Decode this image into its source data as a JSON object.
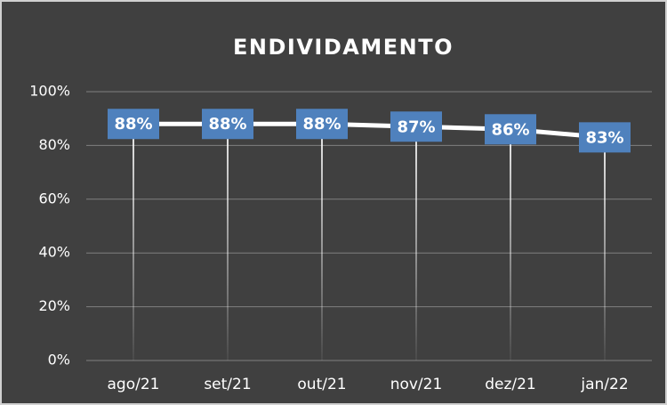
{
  "chart_data": {
    "type": "line",
    "title": "ENDIVIDAMENTO",
    "categories": [
      "ago/21",
      "set/21",
      "out/21",
      "nov/21",
      "dez/21",
      "jan/22"
    ],
    "values": [
      88,
      88,
      88,
      87,
      86,
      83
    ],
    "value_labels": [
      "88%",
      "88%",
      "88%",
      "87%",
      "86%",
      "83%"
    ],
    "color": "#ffffff",
    "label_color": "#4f81bd",
    "ylim": [
      0,
      100
    ],
    "yticks": [
      {
        "value": 0,
        "label": "0%"
      },
      {
        "value": 20,
        "label": "20%"
      },
      {
        "value": 40,
        "label": "40%"
      },
      {
        "value": 60,
        "label": "60%"
      },
      {
        "value": 80,
        "label": "80%"
      },
      {
        "value": 100,
        "label": "100%"
      }
    ],
    "grid": true,
    "drop_lines": true
  }
}
